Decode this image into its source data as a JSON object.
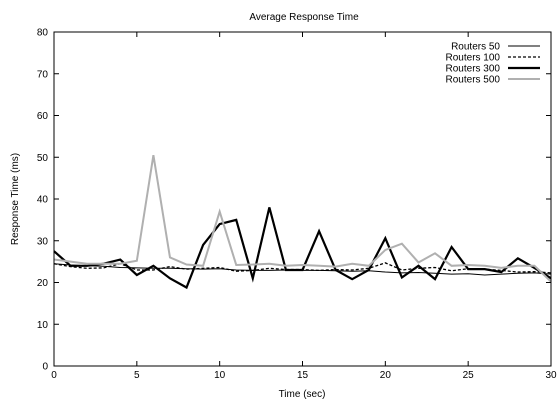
{
  "chart_data": {
    "type": "line",
    "title": "Average Response Time",
    "xlabel": "Time (sec)",
    "ylabel": "Response Time (ms)",
    "xlim": [
      0,
      30
    ],
    "ylim": [
      0,
      80
    ],
    "xticks": [
      0,
      5,
      10,
      15,
      20,
      25,
      30
    ],
    "yticks": [
      0,
      10,
      20,
      30,
      40,
      50,
      60,
      70,
      80
    ],
    "grid": false,
    "legend_position": "top-right",
    "x": [
      0,
      1,
      2,
      3,
      4,
      5,
      6,
      7,
      8,
      9,
      10,
      11,
      12,
      13,
      14,
      15,
      16,
      17,
      18,
      19,
      20,
      21,
      22,
      23,
      24,
      25,
      26,
      27,
      28,
      29,
      30
    ],
    "series": [
      {
        "name": "Routers 50",
        "style": "thin-solid",
        "color": "#000000",
        "values": [
          24.5,
          24.2,
          24.0,
          23.9,
          23.6,
          23.5,
          23.4,
          23.4,
          23.3,
          23.2,
          23.3,
          23.0,
          22.9,
          22.9,
          23.0,
          22.9,
          22.9,
          22.8,
          22.7,
          22.8,
          22.5,
          22.3,
          22.4,
          22.2,
          22.0,
          22.1,
          21.8,
          22.0,
          22.2,
          22.3,
          22.0
        ]
      },
      {
        "name": "Routers 100",
        "style": "dashed",
        "color": "#000000",
        "values": [
          24.5,
          23.8,
          23.4,
          23.5,
          24.5,
          23.0,
          23.0,
          23.8,
          23.2,
          23.4,
          23.6,
          22.7,
          22.9,
          23.4,
          23.1,
          23.1,
          22.9,
          23.1,
          23.0,
          23.4,
          24.7,
          23.0,
          23.4,
          23.6,
          22.8,
          23.3,
          23.2,
          22.9,
          22.5,
          22.6,
          22.3
        ]
      },
      {
        "name": "Routers 300",
        "style": "thick-solid",
        "color": "#000000",
        "values": [
          27.5,
          24.0,
          24.0,
          24.5,
          25.5,
          21.8,
          24.0,
          21.0,
          18.8,
          29.0,
          34.0,
          35.0,
          21.0,
          38.0,
          23.0,
          23.0,
          32.3,
          23.0,
          20.8,
          23.0,
          30.6,
          21.2,
          24.0,
          20.8,
          28.5,
          23.2,
          23.2,
          22.5,
          25.8,
          23.5,
          21.0
        ]
      },
      {
        "name": "Routers 500",
        "style": "gray-solid",
        "color": "#b0b0b0",
        "values": [
          25.5,
          25.0,
          24.5,
          24.5,
          24.5,
          25.2,
          50.5,
          26.0,
          24.3,
          24.0,
          37.0,
          24.2,
          24.3,
          24.5,
          24.0,
          24.2,
          24.0,
          23.8,
          24.5,
          24.0,
          27.8,
          29.3,
          24.8,
          27.0,
          24.0,
          24.2,
          24.0,
          23.5,
          24.0,
          24.0,
          20.2
        ]
      }
    ]
  }
}
